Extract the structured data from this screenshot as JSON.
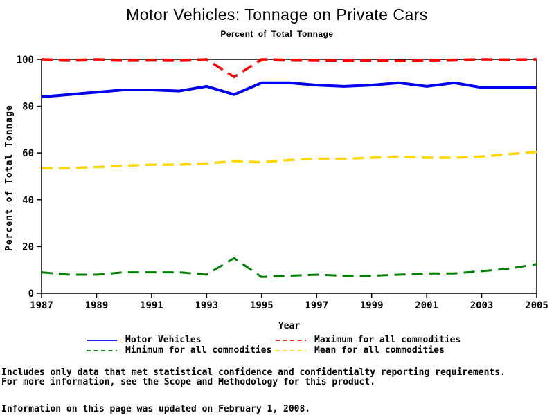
{
  "title": "Motor Vehicles: Tonnage on Private Cars",
  "subtitle": "Percent of Total Tonnage",
  "chart_data": {
    "type": "line",
    "x": [
      1987,
      1988,
      1989,
      1990,
      1991,
      1992,
      1993,
      1994,
      1995,
      1996,
      1997,
      1998,
      1999,
      2000,
      2001,
      2002,
      2003,
      2004,
      2005
    ],
    "xlabel": "Year",
    "ylabel": "Percent of Total Tonnage",
    "ylim": [
      0,
      100
    ],
    "yticks": [
      0,
      20,
      40,
      60,
      80,
      100
    ],
    "xticks": [
      1987,
      1989,
      1991,
      1993,
      1995,
      1997,
      1999,
      2001,
      2003,
      2005
    ],
    "grid": false,
    "legend_position": "bottom",
    "frame": true,
    "series": [
      {
        "name": "Motor Vehicles",
        "color": "#0000ee",
        "style": "solid",
        "width": 4,
        "values": [
          84,
          85,
          86,
          87,
          87,
          86.5,
          88.5,
          85,
          90,
          90,
          89,
          88.5,
          89,
          90,
          88.5,
          90,
          88,
          88,
          88
        ]
      },
      {
        "name": "Maximum for all commodities",
        "color": "#ff0000",
        "style": "dashed",
        "width": 3.5,
        "values": [
          100,
          99.7,
          100,
          99.7,
          99.8,
          99.7,
          100,
          92.5,
          100,
          99.8,
          99.7,
          99.5,
          99.6,
          99.3,
          99.6,
          99.8,
          100,
          99.9,
          100
        ]
      },
      {
        "name": "Minimum for all commodities",
        "color": "#008000",
        "style": "dashed",
        "width": 3,
        "values": [
          9,
          8,
          8,
          9,
          9,
          9,
          8,
          15,
          7,
          7.5,
          8,
          7.5,
          7.5,
          8,
          8.5,
          8.5,
          9.5,
          10.5,
          12.5
        ]
      },
      {
        "name": "Mean for all commodities",
        "color": "#ffd700",
        "style": "dashed",
        "width": 3.5,
        "values": [
          53.5,
          53.5,
          54,
          54.5,
          55,
          55,
          55.5,
          56.5,
          56,
          57,
          57.5,
          57.5,
          58,
          58.5,
          58,
          58,
          58.5,
          59.5,
          60.5
        ]
      }
    ]
  },
  "footnotes": {
    "line1": "Includes only data that met statistical confidence and confidentialty reporting requirements.",
    "line2": "For more information, see the Scope and Methodology for this product.",
    "updated": "Information on this page was updated on February 1, 2008."
  }
}
